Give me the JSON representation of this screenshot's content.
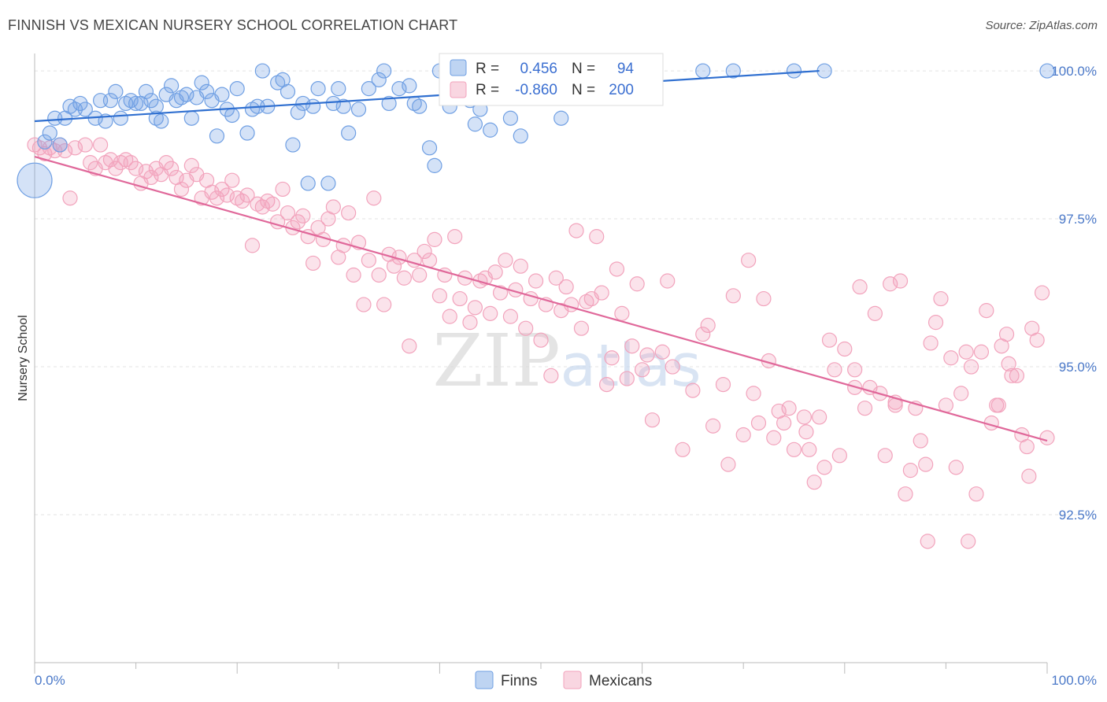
{
  "title": "FINNISH VS MEXICAN NURSERY SCHOOL CORRELATION CHART",
  "source": "Source: ZipAtlas.com",
  "watermark": "ZIPatlas",
  "chart_data": {
    "type": "scatter",
    "ylabel": "Nursery School",
    "xlim": [
      0,
      100
    ],
    "ylim": [
      90.0,
      100.4
    ],
    "x_tick_labels": [
      "0.0%",
      "100.0%"
    ],
    "y_ticks": [
      92.5,
      95.0,
      97.5,
      100.0
    ],
    "y_tick_labels": [
      "92.5%",
      "95.0%",
      "97.5%",
      "100.0%"
    ],
    "grid": true,
    "legend_placement": "top-center",
    "series": [
      {
        "name": "Finns",
        "color": "#6f9fe3",
        "line_color": "#2f6fd0",
        "R": "0.456",
        "N": "94",
        "trend": [
          [
            0,
            99.15
          ],
          [
            77.5,
            100.0
          ]
        ],
        "points": [
          [
            0,
            98.15
          ],
          [
            1,
            98.8
          ],
          [
            1.5,
            98.95
          ],
          [
            2,
            99.2
          ],
          [
            2.5,
            98.75
          ],
          [
            3,
            99.2
          ],
          [
            3.5,
            99.4
          ],
          [
            4,
            99.35
          ],
          [
            4.5,
            99.45
          ],
          [
            5,
            99.35
          ],
          [
            6,
            99.2
          ],
          [
            6.5,
            99.5
          ],
          [
            7,
            99.15
          ],
          [
            7.5,
            99.5
          ],
          [
            8,
            99.65
          ],
          [
            8.5,
            99.2
          ],
          [
            9,
            99.45
          ],
          [
            9.5,
            99.5
          ],
          [
            10,
            99.45
          ],
          [
            10.5,
            99.45
          ],
          [
            11,
            99.65
          ],
          [
            11.5,
            99.5
          ],
          [
            12,
            99.2
          ],
          [
            12.5,
            99.15
          ],
          [
            12,
            99.4
          ],
          [
            13,
            99.6
          ],
          [
            13.5,
            99.75
          ],
          [
            14,
            99.5
          ],
          [
            14.5,
            99.55
          ],
          [
            15,
            99.6
          ],
          [
            15.5,
            99.2
          ],
          [
            16,
            99.55
          ],
          [
            16.5,
            99.8
          ],
          [
            17,
            99.65
          ],
          [
            17.5,
            99.5
          ],
          [
            18,
            98.9
          ],
          [
            18.5,
            99.6
          ],
          [
            19,
            99.35
          ],
          [
            19.5,
            99.25
          ],
          [
            20,
            99.7
          ],
          [
            21,
            98.95
          ],
          [
            21.5,
            99.35
          ],
          [
            22,
            99.4
          ],
          [
            22.5,
            100.0
          ],
          [
            23,
            99.4
          ],
          [
            24,
            99.8
          ],
          [
            24.5,
            99.85
          ],
          [
            25,
            99.65
          ],
          [
            25.5,
            98.75
          ],
          [
            26,
            99.3
          ],
          [
            26.5,
            99.45
          ],
          [
            27,
            98.1
          ],
          [
            27.5,
            99.4
          ],
          [
            28,
            99.7
          ],
          [
            29,
            98.1
          ],
          [
            29.5,
            99.45
          ],
          [
            30,
            99.7
          ],
          [
            30.5,
            99.4
          ],
          [
            31,
            98.95
          ],
          [
            32,
            99.35
          ],
          [
            33,
            99.7
          ],
          [
            34,
            99.85
          ],
          [
            34.5,
            100.0
          ],
          [
            35,
            99.45
          ],
          [
            36,
            99.7
          ],
          [
            37,
            99.75
          ],
          [
            37.5,
            99.45
          ],
          [
            38,
            99.4
          ],
          [
            39,
            98.7
          ],
          [
            39.5,
            98.4
          ],
          [
            40,
            100.0
          ],
          [
            41,
            99.4
          ],
          [
            42,
            99.6
          ],
          [
            42.5,
            100.0
          ],
          [
            43,
            99.5
          ],
          [
            43.5,
            99.1
          ],
          [
            44,
            100.0
          ],
          [
            44,
            99.35
          ],
          [
            45,
            99.0
          ],
          [
            46,
            100.0
          ],
          [
            47,
            99.2
          ],
          [
            48,
            98.9
          ],
          [
            49,
            100.0
          ],
          [
            51,
            100.0
          ],
          [
            52,
            99.2
          ],
          [
            53,
            100.0
          ],
          [
            55,
            100.0
          ],
          [
            56,
            100.0
          ],
          [
            57,
            100.0
          ],
          [
            60,
            100.0
          ],
          [
            66,
            100.0
          ],
          [
            69,
            100.0
          ],
          [
            75,
            100.0
          ],
          [
            78,
            100.0
          ],
          [
            100,
            100.0
          ]
        ]
      },
      {
        "name": "Mexicans",
        "color": "#f2a3bc",
        "line_color": "#e0689a",
        "R": "-0.860",
        "N": "200",
        "trend": [
          [
            0,
            98.55
          ],
          [
            100,
            93.75
          ]
        ],
        "points": [
          [
            0,
            98.75
          ],
          [
            0.5,
            98.7
          ],
          [
            1,
            98.6
          ],
          [
            1.5,
            98.7
          ],
          [
            2,
            98.65
          ],
          [
            2.5,
            98.75
          ],
          [
            3,
            98.65
          ],
          [
            3.5,
            97.85
          ],
          [
            4,
            98.7
          ],
          [
            5,
            98.75
          ],
          [
            5.5,
            98.45
          ],
          [
            6,
            98.35
          ],
          [
            6.5,
            98.75
          ],
          [
            7,
            98.45
          ],
          [
            7.5,
            98.5
          ],
          [
            8,
            98.35
          ],
          [
            8.5,
            98.45
          ],
          [
            9,
            98.5
          ],
          [
            9.5,
            98.45
          ],
          [
            10,
            98.35
          ],
          [
            10.5,
            98.1
          ],
          [
            11,
            98.3
          ],
          [
            11.5,
            98.2
          ],
          [
            12,
            98.35
          ],
          [
            12.5,
            98.25
          ],
          [
            13,
            98.45
          ],
          [
            13.5,
            98.35
          ],
          [
            14,
            98.2
          ],
          [
            14.5,
            98.0
          ],
          [
            15,
            98.15
          ],
          [
            15.5,
            98.4
          ],
          [
            16,
            98.25
          ],
          [
            16.5,
            97.85
          ],
          [
            17,
            98.15
          ],
          [
            17.5,
            97.95
          ],
          [
            18,
            97.85
          ],
          [
            18.5,
            98.0
          ],
          [
            19,
            97.9
          ],
          [
            19.5,
            98.15
          ],
          [
            20,
            97.85
          ],
          [
            20.5,
            97.8
          ],
          [
            21,
            97.9
          ],
          [
            21.5,
            97.05
          ],
          [
            22,
            97.75
          ],
          [
            22.5,
            97.7
          ],
          [
            23,
            97.8
          ],
          [
            23.5,
            97.75
          ],
          [
            24,
            97.45
          ],
          [
            24.5,
            98.0
          ],
          [
            25,
            97.6
          ],
          [
            25.5,
            97.35
          ],
          [
            26,
            97.45
          ],
          [
            26.5,
            97.55
          ],
          [
            27,
            97.2
          ],
          [
            27.5,
            96.75
          ],
          [
            28,
            97.35
          ],
          [
            28.5,
            97.15
          ],
          [
            29,
            97.5
          ],
          [
            29.5,
            97.7
          ],
          [
            30,
            96.85
          ],
          [
            30.5,
            97.05
          ],
          [
            31,
            97.6
          ],
          [
            31.5,
            96.55
          ],
          [
            32,
            97.1
          ],
          [
            32.5,
            96.05
          ],
          [
            33,
            96.8
          ],
          [
            33.5,
            97.85
          ],
          [
            34,
            96.55
          ],
          [
            34.5,
            96.05
          ],
          [
            35,
            96.9
          ],
          [
            35.5,
            96.7
          ],
          [
            36,
            96.85
          ],
          [
            36.5,
            96.5
          ],
          [
            37,
            95.35
          ],
          [
            37.5,
            96.8
          ],
          [
            38,
            96.55
          ],
          [
            38.5,
            96.95
          ],
          [
            39,
            96.8
          ],
          [
            39.5,
            97.15
          ],
          [
            40,
            96.2
          ],
          [
            40.5,
            96.55
          ],
          [
            41,
            95.85
          ],
          [
            41.5,
            97.2
          ],
          [
            42,
            96.15
          ],
          [
            42.5,
            96.5
          ],
          [
            43,
            95.75
          ],
          [
            43.5,
            96.0
          ],
          [
            44,
            96.45
          ],
          [
            44.5,
            96.5
          ],
          [
            45,
            95.9
          ],
          [
            45.5,
            96.6
          ],
          [
            46,
            96.25
          ],
          [
            46.5,
            96.8
          ],
          [
            47,
            95.85
          ],
          [
            47.5,
            96.3
          ],
          [
            48,
            96.7
          ],
          [
            48.5,
            95.65
          ],
          [
            49,
            96.15
          ],
          [
            49.5,
            96.45
          ],
          [
            50,
            95.45
          ],
          [
            50.5,
            96.05
          ],
          [
            51,
            94.85
          ],
          [
            51.5,
            96.5
          ],
          [
            52,
            95.95
          ],
          [
            52.5,
            96.35
          ],
          [
            53,
            96.05
          ],
          [
            53.5,
            97.3
          ],
          [
            54,
            95.65
          ],
          [
            54.5,
            96.1
          ],
          [
            55,
            96.15
          ],
          [
            55.5,
            97.2
          ],
          [
            56,
            96.25
          ],
          [
            56.5,
            94.7
          ],
          [
            57,
            95.15
          ],
          [
            57.5,
            96.65
          ],
          [
            58,
            95.9
          ],
          [
            58.5,
            94.8
          ],
          [
            59,
            95.35
          ],
          [
            59.5,
            96.4
          ],
          [
            60,
            94.95
          ],
          [
            60.5,
            95.2
          ],
          [
            61,
            94.1
          ],
          [
            62,
            95.25
          ],
          [
            63,
            95.0
          ],
          [
            64,
            93.6
          ],
          [
            65,
            94.6
          ],
          [
            66,
            95.55
          ],
          [
            67,
            94.0
          ],
          [
            68,
            94.7
          ],
          [
            69,
            96.2
          ],
          [
            70,
            93.85
          ],
          [
            71,
            94.55
          ],
          [
            72,
            96.15
          ],
          [
            73,
            93.8
          ],
          [
            74,
            94.05
          ],
          [
            75,
            93.6
          ],
          [
            76,
            94.15
          ],
          [
            77,
            93.05
          ],
          [
            78,
            93.3
          ],
          [
            79,
            94.95
          ],
          [
            80,
            95.3
          ],
          [
            81,
            94.65
          ],
          [
            82,
            94.3
          ],
          [
            83,
            95.9
          ],
          [
            84,
            93.5
          ],
          [
            85,
            94.35
          ],
          [
            86,
            92.85
          ],
          [
            87,
            94.3
          ],
          [
            88,
            93.35
          ],
          [
            89,
            95.75
          ],
          [
            90,
            94.35
          ],
          [
            91,
            93.3
          ],
          [
            92,
            95.25
          ],
          [
            93,
            92.85
          ],
          [
            94,
            95.95
          ],
          [
            95,
            94.35
          ],
          [
            96,
            95.55
          ],
          [
            97,
            94.85
          ],
          [
            98,
            93.65
          ],
          [
            99,
            95.45
          ],
          [
            100,
            93.8
          ],
          [
            62.5,
            96.45
          ],
          [
            66.5,
            95.7
          ],
          [
            70.5,
            96.8
          ],
          [
            71.5,
            94.05
          ],
          [
            74.5,
            94.3
          ],
          [
            76.5,
            93.6
          ],
          [
            78.5,
            95.45
          ],
          [
            81.5,
            96.35
          ],
          [
            82.5,
            94.65
          ],
          [
            84.5,
            96.4
          ],
          [
            85.5,
            96.45
          ],
          [
            87.5,
            93.75
          ],
          [
            88.5,
            95.4
          ],
          [
            89.5,
            96.15
          ],
          [
            91.5,
            94.55
          ],
          [
            92.5,
            95.0
          ],
          [
            93.5,
            95.25
          ],
          [
            94.5,
            94.05
          ],
          [
            95.5,
            95.35
          ],
          [
            96.5,
            94.85
          ],
          [
            97.5,
            93.85
          ],
          [
            98.5,
            95.65
          ],
          [
            99.5,
            96.25
          ],
          [
            76.2,
            93.9
          ],
          [
            79.5,
            93.5
          ],
          [
            83.5,
            94.55
          ],
          [
            86.5,
            93.25
          ],
          [
            88.2,
            92.05
          ],
          [
            92.2,
            92.05
          ],
          [
            95.2,
            94.35
          ],
          [
            96.2,
            95.05
          ],
          [
            98.2,
            93.15
          ],
          [
            73.5,
            94.25
          ],
          [
            68.5,
            93.35
          ],
          [
            72.5,
            95.1
          ],
          [
            77.5,
            94.15
          ],
          [
            81,
            94.95
          ],
          [
            85,
            94.4
          ],
          [
            90.5,
            95.15
          ]
        ]
      }
    ]
  }
}
